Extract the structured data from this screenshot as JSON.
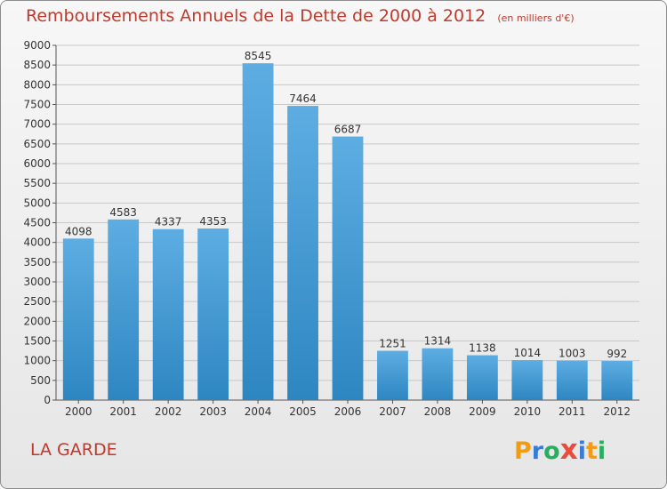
{
  "header": {
    "title": "Remboursements Annuels de la Dette de 2000 à 2012",
    "unit_note": "(en milliers d'€)"
  },
  "footer": {
    "commune": "LA GARDE",
    "logo": {
      "letters": [
        "P",
        "r",
        "o",
        "x",
        "i",
        "t",
        "i"
      ],
      "colors": [
        "#f39c12",
        "#3a7bd5",
        "#27ae60",
        "#e74c3c",
        "#3a7bd5",
        "#f39c12",
        "#27ae60"
      ]
    }
  },
  "colors": {
    "bar_light": "#5dade2",
    "bar_dark": "#2e86c1",
    "title": "#c0392b",
    "grid": "#c8c8c8"
  },
  "chart_data": {
    "type": "bar",
    "title": "Remboursements Annuels de la Dette de 2000 à 2012",
    "subtitle": "(en milliers d'€)",
    "categories": [
      "2000",
      "2001",
      "2002",
      "2003",
      "2004",
      "2005",
      "2006",
      "2007",
      "2008",
      "2009",
      "2010",
      "2011",
      "2012"
    ],
    "values": [
      4098,
      4583,
      4337,
      4353,
      8545,
      7464,
      6687,
      1251,
      1314,
      1138,
      1014,
      1003,
      992
    ],
    "ylim": [
      0,
      9000
    ],
    "yticks": [
      0,
      500,
      1000,
      1500,
      2000,
      2500,
      3000,
      3500,
      4000,
      4500,
      5000,
      5500,
      6000,
      6500,
      7000,
      7500,
      8000,
      8500,
      9000
    ],
    "grid": true,
    "data_labels": true
  }
}
